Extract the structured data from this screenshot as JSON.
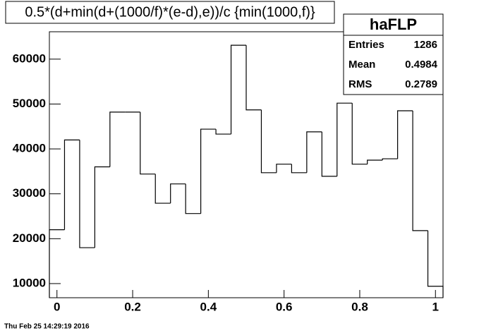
{
  "chart_data": {
    "type": "histogram",
    "title": "0.5*(d+min(d+(1000/f)*(e-d),e))/c {min(1000,f)}",
    "bins": [
      -0.02,
      0.02,
      0.06,
      0.1,
      0.14,
      0.18,
      0.22,
      0.26,
      0.3,
      0.34,
      0.38,
      0.42,
      0.46,
      0.5,
      0.54,
      0.58,
      0.62,
      0.66,
      0.7,
      0.74,
      0.78,
      0.82,
      0.86,
      0.9,
      0.94,
      0.98,
      1.02
    ],
    "counts": [
      22000,
      42000,
      18000,
      36000,
      48200,
      48200,
      34400,
      27900,
      32200,
      25600,
      44400,
      43300,
      63100,
      48700,
      34700,
      36600,
      34700,
      43800,
      33900,
      50200,
      36600,
      37500,
      37800,
      48500,
      21800,
      9400
    ],
    "color": "#000000",
    "xlim": [
      -0.02,
      1.02
    ],
    "xticks": [
      0,
      0.2,
      0.4,
      0.6,
      0.8,
      1
    ],
    "ylim": [
      6850,
      66100
    ],
    "yticks": [
      10000,
      20000,
      30000,
      40000,
      50000,
      60000
    ],
    "grid": false,
    "stats": {
      "name": "haFLP",
      "rows": [
        {
          "label": "Entries",
          "value": 1286
        },
        {
          "label": "Mean",
          "value": 0.4984
        },
        {
          "label": "RMS",
          "value": 0.2789
        }
      ]
    },
    "timestamp": "Thu Feb 25 14:29:19 2016"
  }
}
